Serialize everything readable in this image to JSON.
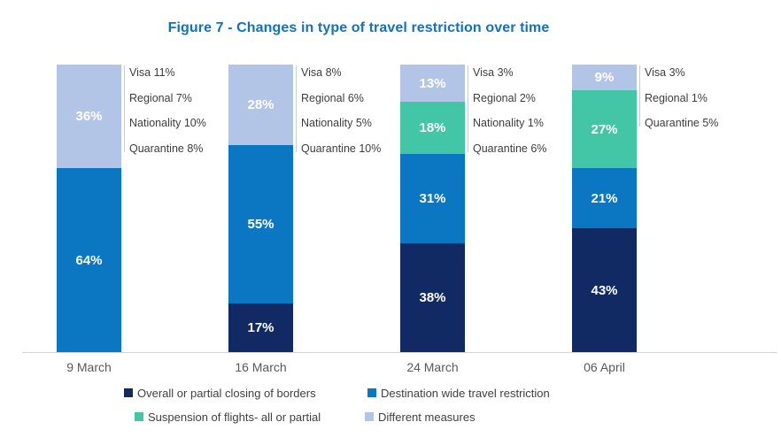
{
  "title": "Figure 7 - Changes in type of travel restriction over time",
  "colors": {
    "navy": "#122a64",
    "blue": "#0b77c2",
    "teal": "#43c6a5",
    "light_blue": "#b2c5e6",
    "title_blue": "#1273bb",
    "axis_line": "#d6d6d6",
    "annotation_text": "#3d3d3d",
    "axis_label_text": "#595959"
  },
  "chart_data": {
    "type": "bar",
    "stacked": true,
    "title": "Figure 7 - Changes in type of travel restriction over time",
    "categories": [
      "9 March",
      "16 March",
      "24 March",
      "06 April"
    ],
    "series": [
      {
        "name": "Overall or partial closing of borders",
        "color_key": "navy",
        "values": [
          0,
          17,
          38,
          43
        ]
      },
      {
        "name": "Destination wide travel restriction",
        "color_key": "blue",
        "values": [
          64,
          55,
          31,
          21
        ]
      },
      {
        "name": "Suspension of flights- all or partial",
        "color_key": "teal",
        "values": [
          0,
          0,
          18,
          27
        ]
      },
      {
        "name": "Different measures",
        "color_key": "light_blue",
        "values": [
          36,
          28,
          13,
          9
        ]
      }
    ],
    "bar_annotations": [
      [
        "Visa 11%",
        "Regional 7%",
        "Nationality 10%",
        "Quarantine 8%"
      ],
      [
        "Visa 8%",
        "Regional 6%",
        "Nationality 5%",
        "Quarantine 10%"
      ],
      [
        "Visa 3%",
        "Regional 2%",
        "Nationality 1%",
        "Quarantine 6%"
      ],
      [
        "Visa 3%",
        "Regional 1%",
        "Quarantine 5%"
      ]
    ],
    "value_suffix": "%",
    "ylim": [
      0,
      100
    ],
    "grid": false,
    "legend_position": "bottom"
  }
}
